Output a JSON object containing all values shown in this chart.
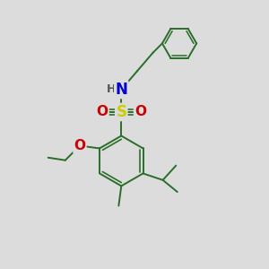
{
  "bg_color": "#dcdcdc",
  "bond_color": "#2a6e2a",
  "bond_width": 1.4,
  "atom_colors": {
    "S": "#cccc00",
    "O": "#cc0000",
    "N": "#0000cc",
    "H": "#555555"
  },
  "font_size_large": 10,
  "font_size_small": 8
}
